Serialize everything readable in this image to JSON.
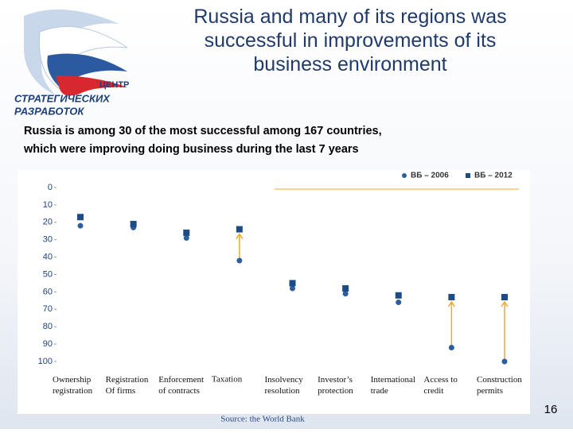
{
  "slide": {
    "title": "Russia and many of its regions was\nsuccessful in improvements of its\nbusiness environment",
    "subtitle": "Russia is among 30 of the most successful among 167 countries,\nwhich were improving doing business during the last 7 years",
    "logo": {
      "line1": "ЦЕНТР",
      "line2": "СТРАТЕГИЧЕСКИХ",
      "line3": "РАЗРАБОТОК"
    },
    "source": "Source: the World Bank",
    "page_number": "16"
  },
  "chart_data": {
    "type": "dot",
    "categories": [
      "Ownership\nregistration",
      "Registration\nOf firms",
      "Enforcement\nof contracts",
      "Taxation",
      "Insolvency\nresolution",
      "Investor’s\nprotection",
      "International\ntrade",
      "Access to\ncredit",
      "Construction\npermits"
    ],
    "series": [
      {
        "name": "ВБ – 2006",
        "color": "#2d5f9e",
        "marker": "circle",
        "values": [
          22,
          23,
          29,
          42,
          58,
          61,
          66,
          92,
          100
        ]
      },
      {
        "name": "ВБ – 2012",
        "color": "#1d4b86",
        "marker": "square",
        "values": [
          17,
          21,
          26,
          24,
          55,
          58,
          62,
          63,
          63
        ]
      }
    ],
    "ylim": [
      0,
      100
    ],
    "yticks": [
      0,
      10,
      20,
      30,
      40,
      50,
      60,
      70,
      80,
      90,
      100
    ],
    "y_inverted": true,
    "arrow_color": "#f0a830",
    "legend": "top-right"
  }
}
